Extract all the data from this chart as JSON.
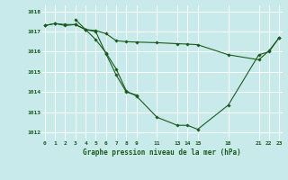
{
  "background_color": "#c8eaea",
  "grid_color": "#ffffff",
  "line_color": "#1a5c1a",
  "title": "Graphe pression niveau de la mer (hPa)",
  "series": [
    {
      "x": [
        0,
        1,
        2,
        3,
        4,
        5,
        6,
        7,
        8,
        9,
        11,
        13,
        14,
        15,
        18,
        21,
        22,
        23
      ],
      "y": [
        1017.3,
        1017.4,
        1017.3,
        1017.35,
        1017.1,
        1017.05,
        1016.9,
        1016.55,
        1016.5,
        1016.48,
        1016.45,
        1016.4,
        1016.38,
        1016.35,
        1015.85,
        1015.6,
        1016.05,
        1016.7
      ]
    },
    {
      "x": [
        0,
        1,
        2,
        3,
        4,
        5,
        6,
        7,
        8,
        9,
        11,
        13,
        14,
        15,
        18,
        21,
        22,
        23
      ],
      "y": [
        1017.3,
        1017.4,
        1017.35,
        1017.35,
        1017.1,
        1016.6,
        1015.95,
        1015.15,
        1014.05,
        1013.8,
        1012.75,
        1012.35,
        1012.35,
        1012.15,
        1013.35,
        1015.85,
        1016.0,
        1016.7
      ]
    },
    {
      "x": [
        3,
        4,
        5,
        6,
        7,
        8,
        9
      ],
      "y": [
        1017.6,
        1017.1,
        1017.0,
        1015.9,
        1014.85,
        1014.0,
        1013.85
      ]
    }
  ],
  "xticks": [
    0,
    1,
    2,
    3,
    4,
    5,
    6,
    7,
    8,
    9,
    11,
    13,
    14,
    15,
    18,
    21,
    22,
    23
  ],
  "xtick_labels": [
    "0",
    "1",
    "2",
    "3",
    "4",
    "5",
    "6",
    "7",
    "8",
    "9",
    "11",
    "13",
    "14",
    "15",
    "18",
    "21",
    "22",
    "23"
  ],
  "xlim": [
    -0.3,
    23.3
  ],
  "ylim": [
    1011.6,
    1018.3
  ],
  "yticks": [
    1012,
    1013,
    1014,
    1015,
    1016,
    1017,
    1018
  ],
  "figsize": [
    3.2,
    2.0
  ],
  "dpi": 100
}
